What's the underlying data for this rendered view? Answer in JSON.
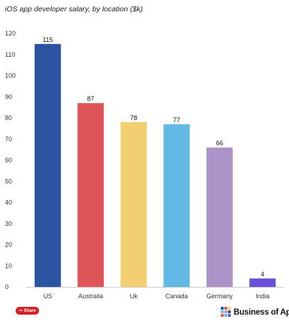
{
  "title": "iOS app developer salary, by location ($k)",
  "share_label": "Share",
  "share_icon": "share-icon",
  "brand_name": "Business of Apps",
  "chart_data": {
    "type": "bar",
    "title": "iOS app developer salary, by location ($k)",
    "categories": [
      "US",
      "Australia",
      "Uk",
      "Canada",
      "Germany",
      "India"
    ],
    "values": [
      115,
      87,
      78,
      77,
      66,
      4
    ],
    "colors": [
      "#2a53a2",
      "#de5459",
      "#f2cf70",
      "#63b9e6",
      "#ab93c8",
      "#6a4fda"
    ],
    "ylim": [
      0,
      120
    ],
    "yticks": [
      0,
      10,
      20,
      30,
      40,
      50,
      60,
      70,
      80,
      90,
      100,
      110,
      120
    ],
    "data_labels": true,
    "grid": false,
    "legend": "none"
  }
}
